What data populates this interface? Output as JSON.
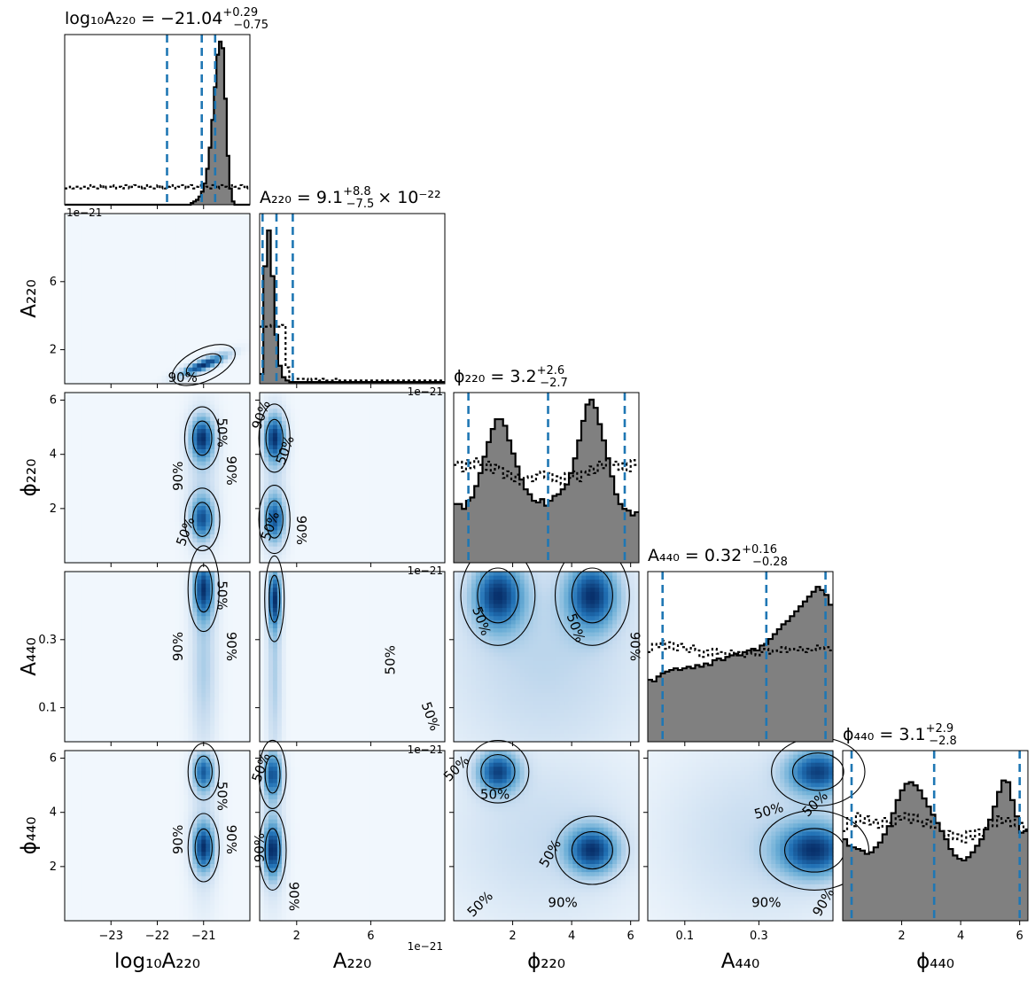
{
  "chart_data": {
    "type": "corner",
    "parameters": [
      {
        "key": "log10A220",
        "label": "log₁₀A₂₂₀",
        "ticks": [
          -23,
          -22,
          -21
        ],
        "range": [
          -24.0,
          -20.0
        ],
        "sci": ""
      },
      {
        "key": "A220",
        "label": "A₂₂₀",
        "ticks": [
          2,
          6
        ],
        "range": [
          0,
          10
        ],
        "sci": "1e−21"
      },
      {
        "key": "phi220",
        "label": "ϕ₂₂₀",
        "ticks": [
          2,
          4,
          6
        ],
        "range": [
          0,
          6.28
        ],
        "sci": ""
      },
      {
        "key": "A440",
        "label": "A₄₄₀",
        "ticks": [
          0.1,
          0.3
        ],
        "range": [
          0,
          0.5
        ],
        "sci": ""
      },
      {
        "key": "phi440",
        "label": "ϕ₄₄₀",
        "ticks": [
          2,
          4,
          6
        ],
        "range": [
          0,
          6.28
        ],
        "sci": ""
      }
    ],
    "titles": [
      {
        "name": "log₁₀A₂₂₀",
        "value": "−21.04",
        "plus": "+0.29",
        "minus": "−0.75",
        "suffix": ""
      },
      {
        "name": "A₂₂₀",
        "value": "9.1",
        "plus": "+8.8",
        "minus": "−7.5",
        "suffix": "× 10⁻²²"
      },
      {
        "name": "ϕ₂₂₀",
        "value": "3.2",
        "plus": "+2.6",
        "minus": "−2.7",
        "suffix": ""
      },
      {
        "name": "A₄₄₀",
        "value": "0.32",
        "plus": "+0.16",
        "minus": "−0.28",
        "suffix": ""
      },
      {
        "name": "ϕ₄₄₀",
        "value": "3.1",
        "plus": "+2.9",
        "minus": "−2.8",
        "suffix": ""
      }
    ],
    "quantiles": [
      [
        -21.79,
        -21.04,
        -20.75
      ],
      [
        0.16,
        0.91,
        1.79
      ],
      [
        0.5,
        3.2,
        5.8
      ],
      [
        0.04,
        0.32,
        0.48
      ],
      [
        0.3,
        3.1,
        6.0
      ]
    ],
    "histograms": [
      {
        "bins": [
          -24.0,
          -20.0
        ],
        "posterior": [
          0,
          0,
          0,
          0,
          0,
          0,
          0,
          0,
          0,
          0,
          0,
          0,
          0,
          0,
          0,
          0,
          0,
          0,
          0,
          0,
          0,
          0,
          0,
          0,
          0,
          0,
          0,
          0,
          0,
          0,
          0,
          0,
          0,
          0,
          0,
          0,
          0,
          0,
          0,
          0,
          0,
          0,
          0,
          0,
          0,
          0,
          0,
          0,
          0,
          0.01,
          0.02,
          0.03,
          0.05,
          0.08,
          0.13,
          0.22,
          0.35,
          0.52,
          0.72,
          0.92,
          1.0,
          0.96,
          0.65,
          0.3,
          0.1,
          0.02,
          0,
          0,
          0,
          0,
          0,
          0
        ],
        "prior": [
          0.1,
          0.1,
          0.11,
          0.1,
          0.11,
          0.1,
          0.1,
          0.11,
          0.11,
          0.1,
          0.12,
          0.11,
          0.1,
          0.11,
          0.12,
          0.1,
          0.11,
          0.11,
          0.12,
          0.1,
          0.11,
          0.11,
          0.1,
          0.12,
          0.11,
          0.1,
          0.11,
          0.12,
          0.11,
          0.1,
          0.11,
          0.1,
          0.12,
          0.11,
          0.1,
          0.11,
          0.12,
          0.1,
          0.11,
          0.1,
          0.11,
          0.12,
          0.11,
          0.1,
          0.11,
          0.12,
          0.11,
          0.1,
          0.11,
          0.12,
          0.1,
          0.11,
          0.12,
          0.11,
          0.1,
          0.11,
          0.1,
          0.12,
          0.11,
          0.1,
          0.11,
          0.12,
          0.11,
          0.1,
          0.11,
          0.12,
          0.11,
          0.1,
          0.12,
          0.11,
          0.1,
          0.11
        ]
      },
      {
        "bins": [
          0,
          10
        ],
        "posterior": [
          0.06,
          0.72,
          0.94,
          0.66,
          0.3,
          0.11,
          0.04,
          0.02,
          0.01,
          0.01,
          0.01,
          0.01,
          0.01,
          0.01,
          0.01,
          0.01,
          0.01,
          0.01,
          0.01,
          0.01,
          0.01,
          0.01,
          0.01,
          0.01,
          0.01,
          0.01,
          0.01,
          0.01,
          0.01,
          0.01,
          0.01,
          0.01,
          0.01,
          0.01,
          0.01,
          0.01,
          0.01,
          0.01,
          0.01,
          0.01,
          0.01,
          0.01,
          0.01,
          0.01,
          0.01,
          0.01,
          0.01,
          0.01,
          0.01,
          0.01
        ],
        "prior": [
          0.35,
          0.35,
          0.35,
          0.36,
          0.35,
          0.35,
          0.36,
          0.1,
          0.04,
          0.03,
          0.03,
          0.03,
          0.03,
          0.02,
          0.03,
          0.03,
          0.02,
          0.03,
          0.02,
          0.02,
          0.03,
          0.02,
          0.02,
          0.02,
          0.02,
          0.02,
          0.02,
          0.02,
          0.02,
          0.02,
          0.02,
          0.02,
          0.02,
          0.02,
          0.02,
          0.02,
          0.02,
          0.02,
          0.02,
          0.02,
          0.02,
          0.02,
          0.02,
          0.02,
          0.02,
          0.02,
          0.02,
          0.02,
          0.02,
          0.02
        ]
      },
      {
        "bins": [
          0,
          6.28
        ],
        "posterior": [
          0.36,
          0.36,
          0.33,
          0.38,
          0.4,
          0.47,
          0.55,
          0.65,
          0.74,
          0.82,
          0.88,
          0.88,
          0.84,
          0.75,
          0.67,
          0.59,
          0.51,
          0.45,
          0.42,
          0.38,
          0.37,
          0.39,
          0.35,
          0.38,
          0.41,
          0.42,
          0.45,
          0.48,
          0.55,
          0.64,
          0.75,
          0.87,
          0.97,
          1.0,
          0.95,
          0.85,
          0.75,
          0.64,
          0.53,
          0.42,
          0.36,
          0.33,
          0.32,
          0.29,
          0.31
        ],
        "prior": [
          0.6,
          0.62,
          0.56,
          0.63,
          0.58,
          0.64,
          0.6,
          0.57,
          0.62,
          0.55,
          0.6,
          0.58,
          0.52,
          0.56,
          0.5,
          0.54,
          0.48,
          0.52,
          0.53,
          0.5,
          0.54,
          0.56,
          0.52,
          0.55,
          0.5,
          0.53,
          0.48,
          0.55,
          0.52,
          0.56,
          0.5,
          0.56,
          0.54,
          0.59,
          0.55,
          0.62,
          0.58,
          0.64,
          0.6,
          0.62,
          0.57,
          0.61,
          0.56,
          0.63,
          0.6
        ]
      },
      {
        "bins": [
          0,
          0.5
        ],
        "posterior": [
          0.38,
          0.37,
          0.4,
          0.42,
          0.43,
          0.44,
          0.45,
          0.44,
          0.45,
          0.46,
          0.45,
          0.47,
          0.46,
          0.48,
          0.47,
          0.5,
          0.51,
          0.5,
          0.52,
          0.53,
          0.54,
          0.53,
          0.55,
          0.56,
          0.57,
          0.56,
          0.59,
          0.6,
          0.63,
          0.66,
          0.69,
          0.72,
          0.74,
          0.77,
          0.8,
          0.83,
          0.86,
          0.89,
          0.92,
          0.95,
          0.93,
          0.9,
          0.84
        ],
        "prior": [
          0.55,
          0.6,
          0.58,
          0.62,
          0.57,
          0.61,
          0.56,
          0.6,
          0.58,
          0.55,
          0.59,
          0.56,
          0.52,
          0.56,
          0.53,
          0.57,
          0.54,
          0.55,
          0.52,
          0.56,
          0.53,
          0.55,
          0.52,
          0.54,
          0.56,
          0.53,
          0.55,
          0.57,
          0.54,
          0.56,
          0.55,
          0.58,
          0.55,
          0.57,
          0.56,
          0.58,
          0.55,
          0.57,
          0.56,
          0.59,
          0.57,
          0.58,
          0.56
        ]
      },
      {
        "bins": [
          0,
          6.28
        ],
        "posterior": [
          0.5,
          0.46,
          0.45,
          0.44,
          0.43,
          0.41,
          0.42,
          0.45,
          0.48,
          0.53,
          0.58,
          0.66,
          0.74,
          0.8,
          0.84,
          0.85,
          0.83,
          0.8,
          0.75,
          0.7,
          0.65,
          0.6,
          0.55,
          0.5,
          0.44,
          0.4,
          0.38,
          0.37,
          0.39,
          0.42,
          0.46,
          0.5,
          0.56,
          0.62,
          0.7,
          0.79,
          0.86,
          0.85,
          0.74,
          0.64,
          0.54,
          0.55
        ],
        "prior": [
          0.55,
          0.63,
          0.58,
          0.66,
          0.6,
          0.64,
          0.59,
          0.62,
          0.57,
          0.63,
          0.6,
          0.58,
          0.64,
          0.62,
          0.66,
          0.6,
          0.65,
          0.61,
          0.58,
          0.62,
          0.57,
          0.6,
          0.55,
          0.52,
          0.55,
          0.5,
          0.53,
          0.48,
          0.55,
          0.5,
          0.56,
          0.52,
          0.57,
          0.62,
          0.58,
          0.64,
          0.6,
          0.63,
          0.58,
          0.62,
          0.6,
          0.56
        ]
      }
    ],
    "contours": [
      {
        "row": 1,
        "col": 0,
        "blobs": [
          {
            "cx": -21.0,
            "cy": 1.1,
            "sx": 0.35,
            "sy": 0.45,
            "rho": 0.85,
            "w": 1
          }
        ],
        "labels": [
          {
            "text": "90%",
            "x": -21.45,
            "y": 0.1,
            "rot": 0
          }
        ]
      },
      {
        "row": 2,
        "col": 0,
        "blobs": [
          {
            "cx": -21.03,
            "cy": 4.6,
            "sx": 0.18,
            "sy": 0.55,
            "rho": 0,
            "w": 1
          },
          {
            "cx": -21.03,
            "cy": 1.6,
            "sx": 0.18,
            "sy": 0.55,
            "rho": 0,
            "w": 0.85
          },
          {
            "cx": -21.03,
            "cy": 3.1,
            "sx": 0.25,
            "sy": 1.8,
            "rho": 0,
            "w": 0.25
          }
        ],
        "labels": [
          {
            "text": "50%",
            "x": -20.7,
            "y": 4.8,
            "rot": 90
          },
          {
            "text": "90%",
            "x": -20.5,
            "y": 3.4,
            "rot": 90
          },
          {
            "text": "90%",
            "x": -21.45,
            "y": 3.2,
            "rot": -90
          },
          {
            "text": "50%",
            "x": -21.3,
            "y": 1.1,
            "rot": -70
          }
        ]
      },
      {
        "row": 2,
        "col": 1,
        "blobs": [
          {
            "cx": 0.8,
            "cy": 4.6,
            "sx": 0.4,
            "sy": 0.6,
            "rho": 0,
            "w": 1
          },
          {
            "cx": 0.8,
            "cy": 1.6,
            "sx": 0.4,
            "sy": 0.6,
            "rho": 0,
            "w": 0.85
          },
          {
            "cx": 0.8,
            "cy": 3.1,
            "sx": 0.5,
            "sy": 2.0,
            "rho": 0,
            "w": 0.2
          }
        ],
        "labels": [
          {
            "text": "50%",
            "x": 1.6,
            "y": 4.1,
            "rot": -70
          },
          {
            "text": "50%",
            "x": 0.8,
            "y": 1.3,
            "rot": -70
          },
          {
            "text": "90%",
            "x": 2.0,
            "y": 1.2,
            "rot": 90
          },
          {
            "text": "90%",
            "x": 0.3,
            "y": 5.4,
            "rot": -70
          }
        ]
      },
      {
        "row": 3,
        "col": 0,
        "blobs": [
          {
            "cx": -21.0,
            "cy": 0.45,
            "sx": 0.16,
            "sy": 0.06,
            "rho": 0,
            "w": 1
          },
          {
            "cx": -21.0,
            "cy": 0.22,
            "sx": 0.2,
            "sy": 0.18,
            "rho": 0,
            "w": 0.35
          }
        ],
        "labels": [
          {
            "text": "50%",
            "x": -20.7,
            "y": 0.43,
            "rot": 90
          },
          {
            "text": "90%",
            "x": -20.5,
            "y": 0.28,
            "rot": 90
          },
          {
            "text": "90%",
            "x": -21.45,
            "y": 0.28,
            "rot": -90
          }
        ]
      },
      {
        "row": 3,
        "col": 1,
        "blobs": [
          {
            "cx": 0.8,
            "cy": 0.42,
            "sx": 0.25,
            "sy": 0.06,
            "rho": 0,
            "w": 1
          },
          {
            "cx": 0.8,
            "cy": 0.2,
            "sx": 0.3,
            "sy": 0.2,
            "rho": 0,
            "w": 0.35
          }
        ],
        "labels": [
          {
            "text": "50%",
            "x": 7.3,
            "y": 0.24,
            "rot": -90
          },
          {
            "text": "50%",
            "x": 9.0,
            "y": 0.07,
            "rot": 70
          }
        ]
      },
      {
        "row": 3,
        "col": 2,
        "blobs": [
          {
            "cx": 1.5,
            "cy": 0.43,
            "sx": 0.6,
            "sy": 0.07,
            "rho": 0,
            "w": 1
          },
          {
            "cx": 4.7,
            "cy": 0.43,
            "sx": 0.6,
            "sy": 0.07,
            "rho": 0,
            "w": 1
          },
          {
            "cx": 3.1,
            "cy": 0.25,
            "sx": 2.6,
            "sy": 0.25,
            "rho": 0,
            "w": 0.3
          }
        ],
        "labels": [
          {
            "text": "50%",
            "x": 0.8,
            "y": 0.35,
            "rot": 70
          },
          {
            "text": "50%",
            "x": 4.0,
            "y": 0.33,
            "rot": 70
          },
          {
            "text": "90%",
            "x": 6.0,
            "y": 0.28,
            "rot": 90
          }
        ]
      },
      {
        "row": 4,
        "col": 0,
        "blobs": [
          {
            "cx": -21.0,
            "cy": 5.5,
            "sx": 0.16,
            "sy": 0.5,
            "rho": 0,
            "w": 0.9
          },
          {
            "cx": -21.0,
            "cy": 2.7,
            "sx": 0.16,
            "sy": 0.6,
            "rho": 0,
            "w": 1
          },
          {
            "cx": -21.0,
            "cy": 3.2,
            "sx": 0.22,
            "sy": 2.0,
            "rho": 0,
            "w": 0.25
          }
        ],
        "labels": [
          {
            "text": "50%",
            "x": -20.7,
            "y": 4.6,
            "rot": 90
          },
          {
            "text": "90%",
            "x": -20.5,
            "y": 3.0,
            "rot": 90
          },
          {
            "text": "90%",
            "x": -21.45,
            "y": 3.0,
            "rot": -90
          }
        ]
      },
      {
        "row": 4,
        "col": 1,
        "blobs": [
          {
            "cx": 0.7,
            "cy": 5.4,
            "sx": 0.35,
            "sy": 0.6,
            "rho": 0,
            "w": 0.9
          },
          {
            "cx": 0.7,
            "cy": 2.6,
            "sx": 0.35,
            "sy": 0.7,
            "rho": 0,
            "w": 1
          },
          {
            "cx": 0.7,
            "cy": 3.1,
            "sx": 0.5,
            "sy": 2.2,
            "rho": 0,
            "w": 0.2
          }
        ],
        "labels": [
          {
            "text": "50%",
            "x": 0.3,
            "y": 5.6,
            "rot": -70
          },
          {
            "text": "90%",
            "x": 0.25,
            "y": 2.7,
            "rot": -90
          },
          {
            "text": "90%",
            "x": 1.6,
            "y": 0.9,
            "rot": 90
          }
        ]
      },
      {
        "row": 4,
        "col": 2,
        "blobs": [
          {
            "cx": 1.5,
            "cy": 5.5,
            "sx": 0.5,
            "sy": 0.55,
            "rho": 0,
            "w": 1
          },
          {
            "cx": 4.7,
            "cy": 2.6,
            "sx": 0.6,
            "sy": 0.6,
            "rho": 0,
            "w": 1
          },
          {
            "cx": 3.1,
            "cy": 3.1,
            "sx": 2.5,
            "sy": 2.5,
            "rho": 0,
            "w": 0.25
          }
        ],
        "labels": [
          {
            "text": "50%",
            "x": 0.2,
            "y": 5.5,
            "rot": -45
          },
          {
            "text": "50%",
            "x": 1.4,
            "y": 4.5,
            "rot": 0
          },
          {
            "text": "50%",
            "x": 3.4,
            "y": 2.4,
            "rot": -60
          },
          {
            "text": "90%",
            "x": 3.7,
            "y": 0.5,
            "rot": 0
          },
          {
            "text": "50%",
            "x": 1.0,
            "y": 0.5,
            "rot": -45
          }
        ]
      },
      {
        "row": 4,
        "col": 3,
        "blobs": [
          {
            "cx": 0.46,
            "cy": 5.5,
            "sx": 0.06,
            "sy": 0.6,
            "rho": 0,
            "w": 1
          },
          {
            "cx": 0.45,
            "cy": 2.6,
            "sx": 0.07,
            "sy": 0.7,
            "rho": 0,
            "w": 1
          },
          {
            "cx": 0.3,
            "cy": 3.1,
            "sx": 0.2,
            "sy": 2.5,
            "rho": 0,
            "w": 0.25
          }
        ],
        "labels": [
          {
            "text": "50%",
            "x": 0.33,
            "y": 3.9,
            "rot": -15
          },
          {
            "text": "50%",
            "x": 0.46,
            "y": 4.2,
            "rot": -45
          },
          {
            "text": "90%",
            "x": 0.32,
            "y": 0.5,
            "rot": 0
          },
          {
            "text": "90%",
            "x": 0.485,
            "y": 0.6,
            "rot": -60
          }
        ]
      }
    ]
  }
}
